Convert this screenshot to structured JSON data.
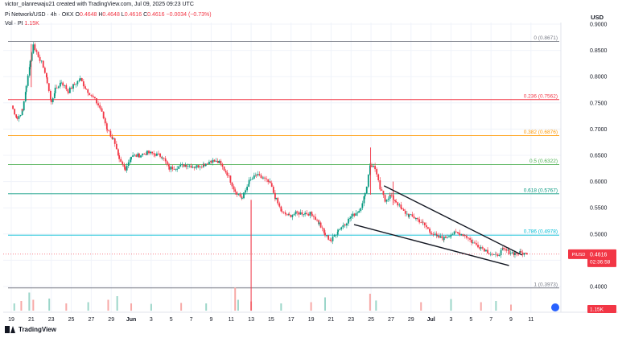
{
  "header": {
    "credit": "victor_olanrewaju21 created with TradingView.com, Jul 09, 2025 09:23 UTC",
    "symbol": "Pi Network/USD · 4h · OKX",
    "o_label": "O",
    "o_value": "0.4648",
    "h_label": "H",
    "h_value": "0.4648",
    "l_label": "L",
    "l_value": "0.4616",
    "c_label": "C",
    "c_value": "0.4616",
    "change": "−0.0034 (−0.73%)",
    "vol_label": "Vol · PI",
    "vol_value": "1.15K",
    "currency": "USD"
  },
  "brand": {
    "name": "TradingView"
  },
  "colors": {
    "up": "#089981",
    "down": "#f23645",
    "grid": "#f0f3fa",
    "fib_0": "#787b86",
    "fib_236": "#f23645",
    "fib_382": "#ff9800",
    "fib_5": "#4caf50",
    "fib_618": "#089981",
    "fib_786": "#00bcd4",
    "fib_1": "#787b86",
    "trend": "#131722"
  },
  "chart_data": {
    "type": "candlestick",
    "y_axis": {
      "ylim": [
        0.37,
        0.89
      ],
      "ticks": [
        0.9,
        0.85,
        0.8,
        0.75,
        0.7,
        0.65,
        0.6,
        0.55,
        0.5,
        0.45,
        0.4
      ],
      "tick_labels": [
        "0.9000",
        "0.8500",
        "0.8000",
        "0.7500",
        "0.7000",
        "0.6500",
        "0.6000",
        "0.5500",
        "0.5000",
        "0.4500",
        "0.4000"
      ]
    },
    "x_axis": {
      "labels": [
        "19",
        "21",
        "23",
        "25",
        "27",
        "29",
        "Jun",
        "3",
        "5",
        "7",
        "9",
        "11",
        "13",
        "15",
        "17",
        "19",
        "21",
        "23",
        "25",
        "27",
        "29",
        "Jul",
        "3",
        "5",
        "7",
        "9",
        "11"
      ],
      "start_date": "2025-05-19"
    },
    "fib_levels": [
      {
        "ratio": "0",
        "value": 0.8671,
        "label": "0 (0.8671)",
        "color_key": "fib_0"
      },
      {
        "ratio": "0.236",
        "value": 0.7562,
        "label": "0.236 (0.7562)",
        "color_key": "fib_236"
      },
      {
        "ratio": "0.382",
        "value": 0.6876,
        "label": "0.382 (0.6876)",
        "color_key": "fib_382"
      },
      {
        "ratio": "0.5",
        "value": 0.6322,
        "label": "0.5 (0.6322)",
        "color_key": "fib_5"
      },
      {
        "ratio": "0.618",
        "value": 0.5767,
        "label": "0.618 (0.5767)",
        "color_key": "fib_618"
      },
      {
        "ratio": "0.786",
        "value": 0.4978,
        "label": "0.786 (0.4978)",
        "color_key": "fib_786"
      },
      {
        "ratio": "1",
        "value": 0.3973,
        "label": "1 (0.3973)",
        "color_key": "fib_1"
      }
    ],
    "trendlines": [
      {
        "name": "upper",
        "from": {
          "day": 37.3,
          "price": 0.592
        },
        "to": {
          "day": 51.1,
          "price": 0.46
        }
      },
      {
        "name": "lower",
        "from": {
          "day": 34.3,
          "price": 0.518
        },
        "to": {
          "day": 49.8,
          "price": 0.44
        }
      }
    ],
    "price_tag": {
      "symbol": "PIUSD",
      "value": "0.4616",
      "countdown": "02:36:58"
    },
    "volume_tag": "1.15K",
    "path": [
      [
        0.0,
        0.745
      ],
      [
        0.6,
        0.72
      ],
      [
        1.1,
        0.735
      ],
      [
        1.5,
        0.78
      ],
      [
        1.9,
        0.83
      ],
      [
        2.2,
        0.86
      ],
      [
        2.7,
        0.84
      ],
      [
        3.2,
        0.82
      ],
      [
        3.6,
        0.79
      ],
      [
        4.0,
        0.75
      ],
      [
        4.4,
        0.775
      ],
      [
        5.0,
        0.79
      ],
      [
        5.7,
        0.772
      ],
      [
        6.3,
        0.785
      ],
      [
        6.9,
        0.795
      ],
      [
        7.5,
        0.776
      ],
      [
        8.2,
        0.76
      ],
      [
        8.9,
        0.74
      ],
      [
        9.6,
        0.7
      ],
      [
        10.2,
        0.68
      ],
      [
        10.8,
        0.64
      ],
      [
        11.4,
        0.625
      ],
      [
        12.0,
        0.648
      ],
      [
        12.8,
        0.65
      ],
      [
        13.6,
        0.655
      ],
      [
        14.4,
        0.652
      ],
      [
        15.1,
        0.648
      ],
      [
        15.8,
        0.625
      ],
      [
        16.6,
        0.628
      ],
      [
        17.5,
        0.632
      ],
      [
        18.4,
        0.628
      ],
      [
        19.3,
        0.633
      ],
      [
        20.0,
        0.64
      ],
      [
        20.8,
        0.636
      ],
      [
        21.6,
        0.615
      ],
      [
        22.4,
        0.582
      ],
      [
        23.1,
        0.568
      ],
      [
        23.8,
        0.6
      ],
      [
        24.5,
        0.612
      ],
      [
        25.2,
        0.606
      ],
      [
        25.9,
        0.596
      ],
      [
        26.5,
        0.565
      ],
      [
        27.1,
        0.54
      ],
      [
        27.8,
        0.535
      ],
      [
        28.6,
        0.54
      ],
      [
        29.4,
        0.54
      ],
      [
        30.1,
        0.538
      ],
      [
        30.8,
        0.52
      ],
      [
        31.4,
        0.498
      ],
      [
        32.0,
        0.487
      ],
      [
        32.7,
        0.508
      ],
      [
        33.4,
        0.52
      ],
      [
        34.0,
        0.533
      ],
      [
        34.8,
        0.545
      ],
      [
        35.4,
        0.575
      ],
      [
        35.9,
        0.632
      ],
      [
        36.4,
        0.626
      ],
      [
        36.9,
        0.586
      ],
      [
        37.4,
        0.565
      ],
      [
        37.9,
        0.573
      ],
      [
        38.5,
        0.562
      ],
      [
        39.1,
        0.545
      ],
      [
        39.8,
        0.535
      ],
      [
        40.5,
        0.53
      ],
      [
        41.2,
        0.52
      ],
      [
        41.9,
        0.505
      ],
      [
        42.6,
        0.494
      ],
      [
        43.3,
        0.492
      ],
      [
        44.0,
        0.5
      ],
      [
        44.7,
        0.502
      ],
      [
        45.4,
        0.498
      ],
      [
        46.2,
        0.483
      ],
      [
        47.0,
        0.475
      ],
      [
        47.8,
        0.465
      ],
      [
        48.5,
        0.458
      ],
      [
        49.2,
        0.47
      ],
      [
        49.8,
        0.466
      ],
      [
        50.4,
        0.463
      ],
      [
        51.0,
        0.464
      ],
      [
        51.6,
        0.4616
      ]
    ],
    "spikes": [
      {
        "day": 2.0,
        "high": 0.862,
        "low": 0.78
      },
      {
        "day": 24.0,
        "high": 0.565,
        "low": 0.46
      },
      {
        "day": 35.95,
        "high": 0.665,
        "low": 0.575
      },
      {
        "day": 38.2,
        "high": 0.6,
        "low": 0.555
      }
    ],
    "volume": [
      [
        0.3,
        0.3
      ],
      [
        1.0,
        0.4
      ],
      [
        1.8,
        0.75
      ],
      [
        2.2,
        0.45
      ],
      [
        3.8,
        0.5
      ],
      [
        5.5,
        0.3
      ],
      [
        7.7,
        0.35
      ],
      [
        9.7,
        0.45
      ],
      [
        10.6,
        0.6
      ],
      [
        12.0,
        0.3
      ],
      [
        14.0,
        0.28
      ],
      [
        17.0,
        0.32
      ],
      [
        19.5,
        0.3
      ],
      [
        22.4,
        0.95
      ],
      [
        22.7,
        0.45
      ],
      [
        24.0,
        0.38
      ],
      [
        27.0,
        0.3
      ],
      [
        30.0,
        0.35
      ],
      [
        31.4,
        0.55
      ],
      [
        35.9,
        0.7
      ],
      [
        36.5,
        0.42
      ],
      [
        41.0,
        0.35
      ],
      [
        44.0,
        0.48
      ],
      [
        47.0,
        0.35
      ],
      [
        48.5,
        0.4
      ],
      [
        50.0,
        0.25
      ]
    ]
  }
}
